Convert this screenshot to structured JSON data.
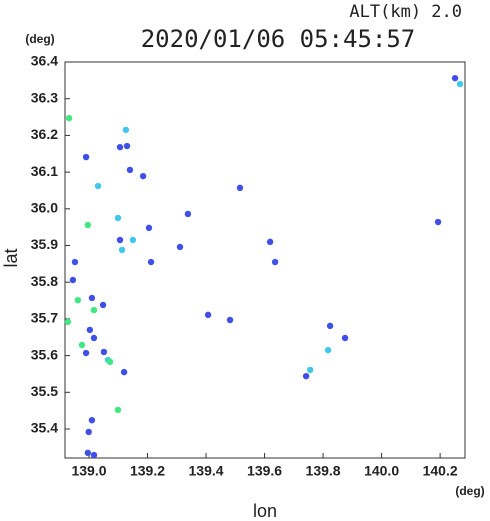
{
  "chart_data": {
    "type": "scatter",
    "header": "ALT(km) 2.0",
    "title": "2020/01/06 05:45:57",
    "y_unit": "(deg)",
    "x_unit": "(deg)",
    "ylabel": "lat",
    "xlabel": "lon",
    "xlim": [
      138.918,
      140.285
    ],
    "ylim": [
      35.321,
      36.4
    ],
    "xticks": [
      {
        "value": 139.0,
        "label": "139.0"
      },
      139.2,
      139.4,
      139.6,
      139.8,
      {
        "value": 140.0,
        "label": "140.0"
      },
      140.2
    ],
    "yticks": [
      35.4,
      35.5,
      35.6,
      35.7,
      35.8,
      35.9,
      {
        "value": 36.0,
        "label": "36.0"
      },
      36.1,
      36.2,
      36.3,
      36.4
    ],
    "series": [
      {
        "color": "#3f4fe8",
        "x": [
          140.251,
          140.193,
          139.106,
          139.13,
          138.99,
          139.14,
          139.185,
          138.952,
          138.945,
          139.01,
          139.048,
          139.003,
          139.017,
          138.99,
          139.051,
          139.12,
          139.01,
          138.999,
          138.996,
          139.017,
          139.205,
          139.212,
          139.311,
          139.516,
          139.619,
          139.407,
          139.742,
          139.824,
          139.875,
          139.636,
          139.482,
          139.106,
          139.338
        ],
        "y": [
          36.356,
          35.964,
          36.168,
          36.171,
          36.141,
          36.106,
          36.089,
          35.855,
          35.806,
          35.757,
          35.738,
          35.67,
          35.648,
          35.607,
          35.61,
          35.555,
          35.424,
          35.392,
          35.335,
          35.329,
          35.948,
          35.855,
          35.896,
          36.057,
          35.91,
          35.711,
          35.544,
          35.681,
          35.648,
          35.855,
          35.697,
          35.915,
          35.986
        ]
      },
      {
        "color": "#3fc8ec",
        "x": [
          139.126,
          139.031,
          139.099,
          139.15,
          139.113,
          139.065,
          139.756,
          140.268,
          139.817
        ],
        "y": [
          36.215,
          36.062,
          35.975,
          35.915,
          35.888,
          35.588,
          35.561,
          36.34,
          35.615
        ]
      },
      {
        "color": "#3fe880",
        "x": [
          138.932,
          138.996,
          138.962,
          139.017,
          138.976,
          139.072,
          139.099,
          138.928
        ],
        "y": [
          36.247,
          35.956,
          35.751,
          35.724,
          35.629,
          35.583,
          35.452,
          35.692
        ]
      }
    ]
  }
}
